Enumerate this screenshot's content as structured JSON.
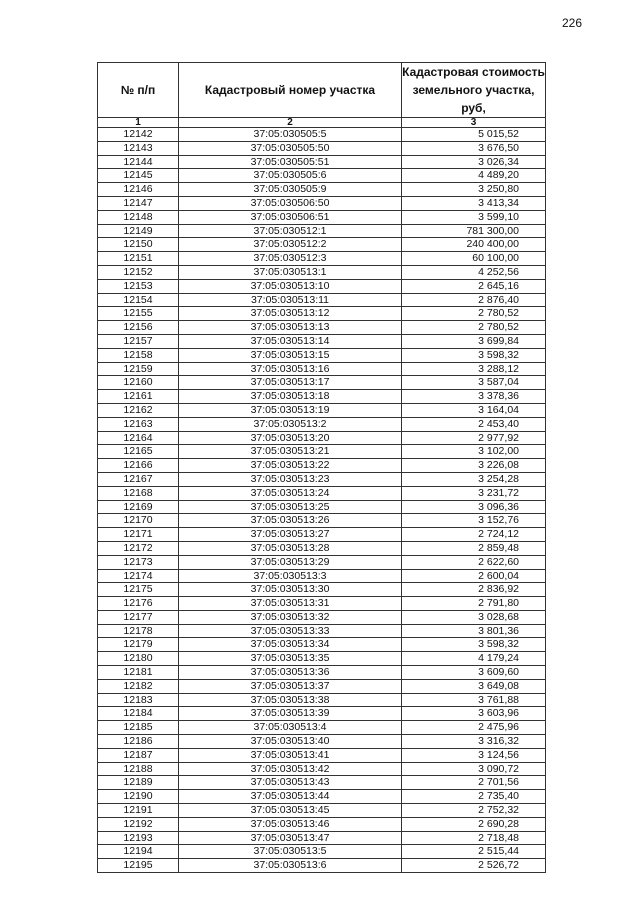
{
  "page_number": "226",
  "table": {
    "headers": [
      "№ п/п",
      "Кадастровый номер участка",
      "Кадастровая стоимость земельного участка, руб,"
    ],
    "column_numbers": [
      "1",
      "2",
      "3"
    ],
    "rows": [
      [
        "12142",
        "37:05:030505:5",
        "5 015,52"
      ],
      [
        "12143",
        "37:05:030505:50",
        "3 676,50"
      ],
      [
        "12144",
        "37:05:030505:51",
        "3 026,34"
      ],
      [
        "12145",
        "37:05:030505:6",
        "4 489,20"
      ],
      [
        "12146",
        "37:05:030505:9",
        "3 250,80"
      ],
      [
        "12147",
        "37:05:030506:50",
        "3 413,34"
      ],
      [
        "12148",
        "37:05:030506:51",
        "3 599,10"
      ],
      [
        "12149",
        "37:05:030512:1",
        "781 300,00"
      ],
      [
        "12150",
        "37:05:030512:2",
        "240 400,00"
      ],
      [
        "12151",
        "37:05:030512:3",
        "60 100,00"
      ],
      [
        "12152",
        "37:05:030513:1",
        "4 252,56"
      ],
      [
        "12153",
        "37:05:030513:10",
        "2 645,16"
      ],
      [
        "12154",
        "37:05:030513:11",
        "2 876,40"
      ],
      [
        "12155",
        "37:05:030513:12",
        "2 780,52"
      ],
      [
        "12156",
        "37:05:030513:13",
        "2 780,52"
      ],
      [
        "12157",
        "37:05:030513:14",
        "3 699,84"
      ],
      [
        "12158",
        "37:05:030513:15",
        "3 598,32"
      ],
      [
        "12159",
        "37:05:030513:16",
        "3 288,12"
      ],
      [
        "12160",
        "37:05:030513:17",
        "3 587,04"
      ],
      [
        "12161",
        "37:05:030513:18",
        "3 378,36"
      ],
      [
        "12162",
        "37:05:030513:19",
        "3 164,04"
      ],
      [
        "12163",
        "37:05:030513:2",
        "2 453,40"
      ],
      [
        "12164",
        "37:05:030513:20",
        "2 977,92"
      ],
      [
        "12165",
        "37:05:030513:21",
        "3 102,00"
      ],
      [
        "12166",
        "37:05:030513:22",
        "3 226,08"
      ],
      [
        "12167",
        "37:05:030513:23",
        "3 254,28"
      ],
      [
        "12168",
        "37:05:030513:24",
        "3 231,72"
      ],
      [
        "12169",
        "37:05:030513:25",
        "3 096,36"
      ],
      [
        "12170",
        "37:05:030513:26",
        "3 152,76"
      ],
      [
        "12171",
        "37:05:030513:27",
        "2 724,12"
      ],
      [
        "12172",
        "37:05:030513:28",
        "2 859,48"
      ],
      [
        "12173",
        "37:05:030513:29",
        "2 622,60"
      ],
      [
        "12174",
        "37:05:030513:3",
        "2 600,04"
      ],
      [
        "12175",
        "37:05:030513:30",
        "2 836,92"
      ],
      [
        "12176",
        "37:05:030513:31",
        "2 791,80"
      ],
      [
        "12177",
        "37:05:030513:32",
        "3 028,68"
      ],
      [
        "12178",
        "37:05:030513:33",
        "3 801,36"
      ],
      [
        "12179",
        "37:05:030513:34",
        "3 598,32"
      ],
      [
        "12180",
        "37:05:030513:35",
        "4 179,24"
      ],
      [
        "12181",
        "37:05:030513:36",
        "3 609,60"
      ],
      [
        "12182",
        "37:05:030513:37",
        "3 649,08"
      ],
      [
        "12183",
        "37:05:030513:38",
        "3 761,88"
      ],
      [
        "12184",
        "37:05:030513:39",
        "3 603,96"
      ],
      [
        "12185",
        "37:05:030513:4",
        "2 475,96"
      ],
      [
        "12186",
        "37:05:030513:40",
        "3 316,32"
      ],
      [
        "12187",
        "37:05:030513:41",
        "3 124,56"
      ],
      [
        "12188",
        "37:05:030513:42",
        "3 090,72"
      ],
      [
        "12189",
        "37:05:030513:43",
        "2 701,56"
      ],
      [
        "12190",
        "37:05:030513:44",
        "2 735,40"
      ],
      [
        "12191",
        "37:05:030513:45",
        "2 752,32"
      ],
      [
        "12192",
        "37:05:030513:46",
        "2 690,28"
      ],
      [
        "12193",
        "37:05:030513:47",
        "2 718,48"
      ],
      [
        "12194",
        "37:05:030513:5",
        "2 515,44"
      ],
      [
        "12195",
        "37:05:030513:6",
        "2 526,72"
      ]
    ]
  }
}
